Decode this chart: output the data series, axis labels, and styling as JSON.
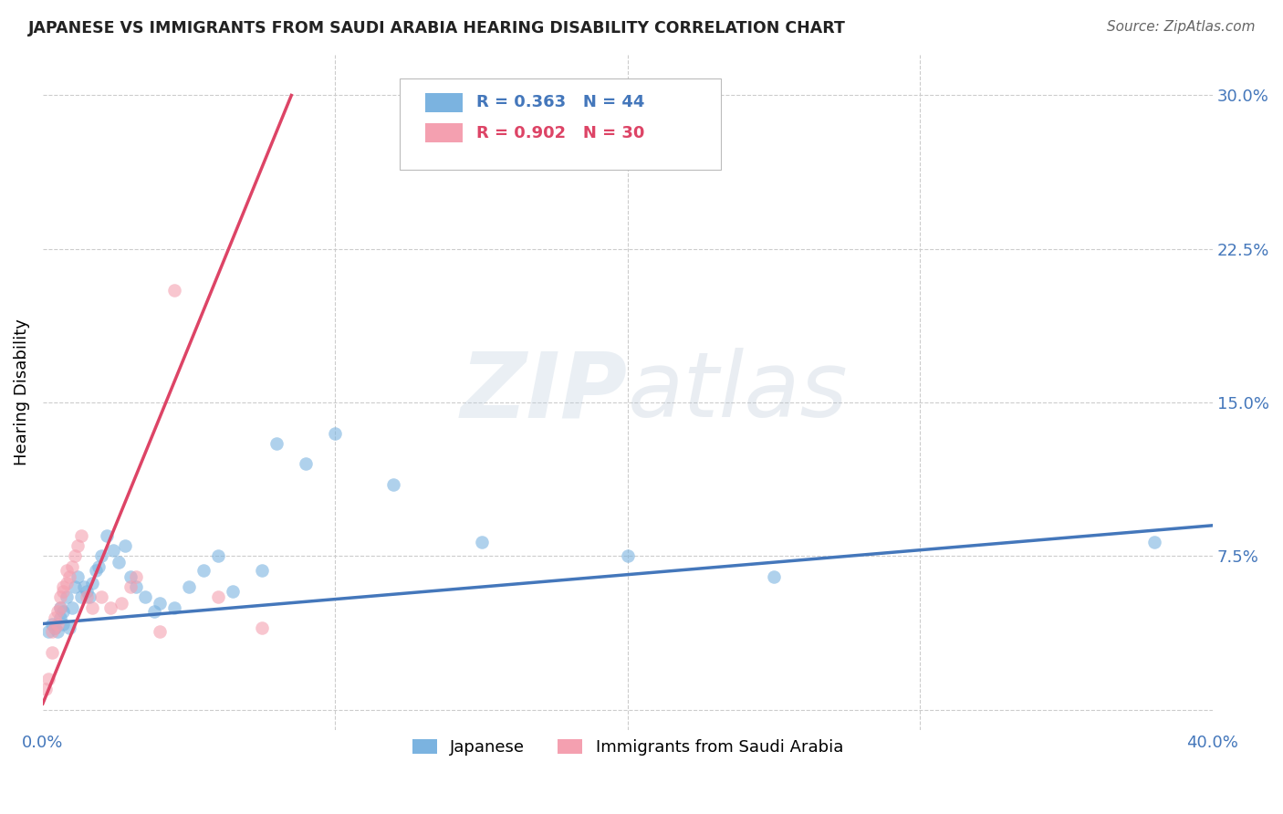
{
  "title": "JAPANESE VS IMMIGRANTS FROM SAUDI ARABIA HEARING DISABILITY CORRELATION CHART",
  "source": "Source: ZipAtlas.com",
  "ylabel": "Hearing Disability",
  "yticks": [
    0.0,
    0.075,
    0.15,
    0.225,
    0.3
  ],
  "ytick_labels": [
    "",
    "7.5%",
    "15.0%",
    "22.5%",
    "30.0%"
  ],
  "xlim": [
    0.0,
    0.4
  ],
  "ylim": [
    -0.01,
    0.32
  ],
  "watermark": "ZIPatlas",
  "legend_blue_r": "R = 0.363",
  "legend_blue_n": "N = 44",
  "legend_pink_r": "R = 0.902",
  "legend_pink_n": "N = 30",
  "legend_label_blue": "Japanese",
  "legend_label_pink": "Immigrants from Saudi Arabia",
  "blue_color": "#7BB3E0",
  "pink_color": "#F4A0B0",
  "blue_line_color": "#4477BB",
  "pink_line_color": "#DD4466",
  "blue_scatter_x": [
    0.002,
    0.003,
    0.004,
    0.005,
    0.006,
    0.006,
    0.007,
    0.007,
    0.008,
    0.009,
    0.01,
    0.011,
    0.012,
    0.013,
    0.014,
    0.015,
    0.016,
    0.017,
    0.018,
    0.019,
    0.02,
    0.022,
    0.024,
    0.026,
    0.028,
    0.03,
    0.032,
    0.035,
    0.038,
    0.04,
    0.045,
    0.05,
    0.055,
    0.06,
    0.065,
    0.075,
    0.08,
    0.09,
    0.1,
    0.12,
    0.15,
    0.2,
    0.25,
    0.38
  ],
  "blue_scatter_y": [
    0.038,
    0.042,
    0.04,
    0.038,
    0.045,
    0.05,
    0.042,
    0.048,
    0.055,
    0.04,
    0.05,
    0.06,
    0.065,
    0.055,
    0.06,
    0.058,
    0.055,
    0.062,
    0.068,
    0.07,
    0.075,
    0.085,
    0.078,
    0.072,
    0.08,
    0.065,
    0.06,
    0.055,
    0.048,
    0.052,
    0.05,
    0.06,
    0.068,
    0.075,
    0.058,
    0.068,
    0.13,
    0.12,
    0.135,
    0.11,
    0.082,
    0.075,
    0.065,
    0.082
  ],
  "pink_scatter_x": [
    0.001,
    0.002,
    0.003,
    0.003,
    0.004,
    0.004,
    0.005,
    0.005,
    0.006,
    0.006,
    0.007,
    0.007,
    0.008,
    0.008,
    0.009,
    0.01,
    0.011,
    0.012,
    0.013,
    0.015,
    0.017,
    0.02,
    0.023,
    0.027,
    0.03,
    0.032,
    0.04,
    0.045,
    0.06,
    0.075
  ],
  "pink_scatter_y": [
    0.01,
    0.015,
    0.028,
    0.038,
    0.04,
    0.045,
    0.042,
    0.048,
    0.05,
    0.055,
    0.058,
    0.06,
    0.062,
    0.068,
    0.065,
    0.07,
    0.075,
    0.08,
    0.085,
    0.055,
    0.05,
    0.055,
    0.05,
    0.052,
    0.06,
    0.065,
    0.038,
    0.205,
    0.055,
    0.04
  ],
  "blue_line_x": [
    0.0,
    0.4
  ],
  "blue_line_y": [
    0.042,
    0.09
  ],
  "pink_line_x": [
    0.0,
    0.085
  ],
  "pink_line_y": [
    0.003,
    0.3
  ]
}
